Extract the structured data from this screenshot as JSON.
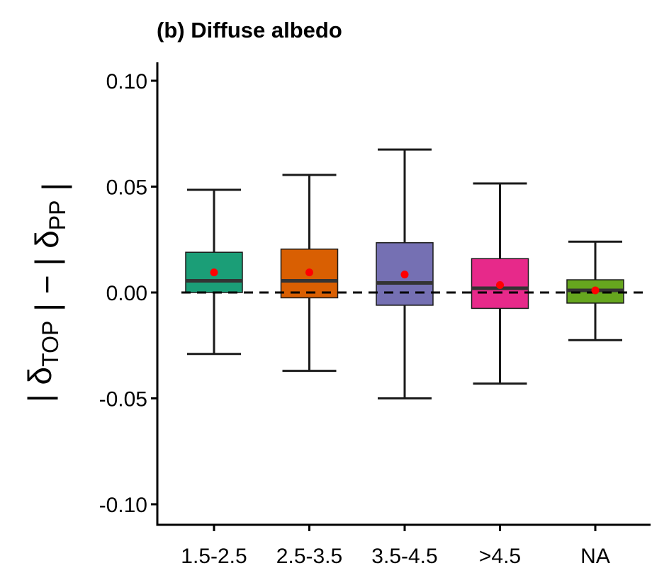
{
  "chart_data": {
    "type": "box",
    "title": "(b) Diffuse albedo",
    "xlabel": "",
    "ylabel": {
      "parts": [
        {
          "text": "| δ",
          "sub": "TOP"
        },
        {
          "text": " | − | δ",
          "sub": "PP"
        },
        {
          "text": " |",
          "sub": ""
        }
      ]
    },
    "ylim": [
      -0.11,
      0.11
    ],
    "yticks": [
      {
        "value": 0.1,
        "label": "0.10"
      },
      {
        "value": 0.05,
        "label": "0.05"
      },
      {
        "value": 0.0,
        "label": "0.00"
      },
      {
        "value": -0.05,
        "label": "-0.05"
      },
      {
        "value": -0.1,
        "label": "-0.10"
      }
    ],
    "reference_line": {
      "value": 0.0,
      "style": "dashed",
      "color": "#000000"
    },
    "mean_marker_color": "#ff0000",
    "median_color": "#333333",
    "categories": [
      "1.5-2.5",
      "2.5-3.5",
      "3.5-4.5",
      ">4.5",
      "NA"
    ],
    "boxes": [
      {
        "category": "1.5-2.5",
        "whisker_low": -0.029,
        "q1": 0.0,
        "median": 0.0055,
        "q3": 0.019,
        "whisker_high": 0.0485,
        "mean": 0.0095,
        "color": "#1b9e77"
      },
      {
        "category": "2.5-3.5",
        "whisker_low": -0.037,
        "q1": -0.0025,
        "median": 0.0055,
        "q3": 0.0205,
        "whisker_high": 0.0555,
        "mean": 0.0095,
        "color": "#d95f02"
      },
      {
        "category": "3.5-4.5",
        "whisker_low": -0.05,
        "q1": -0.006,
        "median": 0.0045,
        "q3": 0.0235,
        "whisker_high": 0.0675,
        "mean": 0.0085,
        "color": "#7570b3"
      },
      {
        "category": ">4.5",
        "whisker_low": -0.043,
        "q1": -0.0075,
        "median": 0.002,
        "q3": 0.016,
        "whisker_high": 0.0515,
        "mean": 0.0035,
        "color": "#e7298a"
      },
      {
        "category": "NA",
        "whisker_low": -0.0225,
        "q1": -0.005,
        "median": 0.001,
        "q3": 0.006,
        "whisker_high": 0.024,
        "mean": 0.001,
        "color": "#66a61e"
      }
    ]
  }
}
